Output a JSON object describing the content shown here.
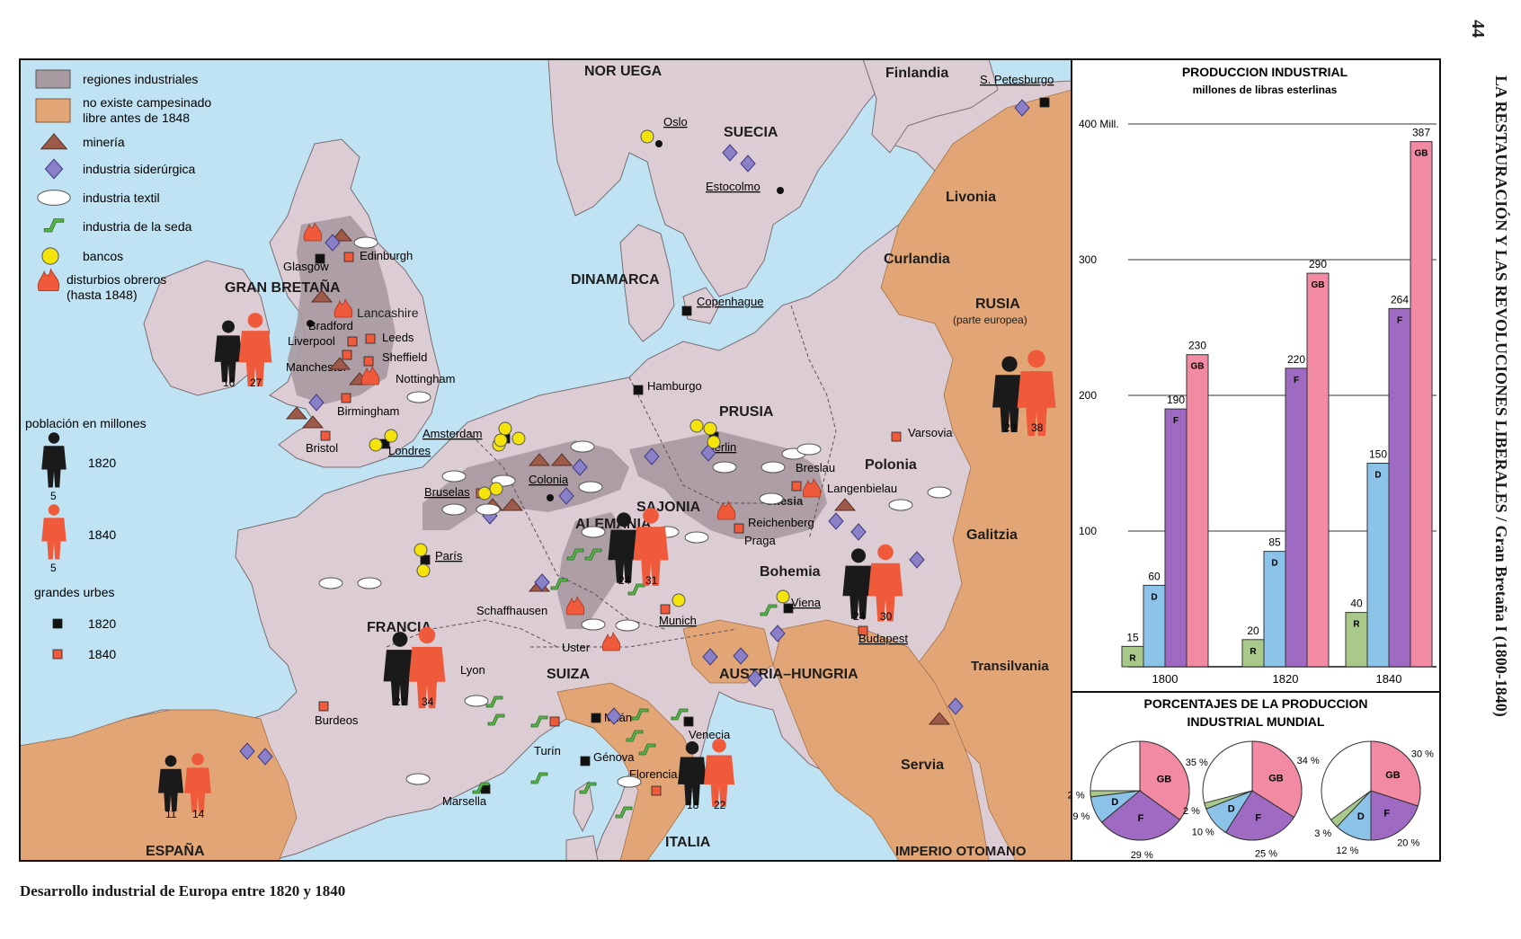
{
  "page_number": "44",
  "running_header": "LA RESTAURACIÓN Y LAS REVOLUCIONES LIBERALES / Gran Bretaña I (1800-1840)",
  "caption": "Desarrollo industrial de Europa entre 1820 y 1840",
  "legend": {
    "items": [
      {
        "symbol": "industrial-region-swatch",
        "label": "regiones industriales"
      },
      {
        "symbol": "no-free-peasantry-swatch",
        "label_lines": [
          "no existe campesinado",
          "libre antes de 1848"
        ]
      },
      {
        "symbol": "mining-icon",
        "label": "minería"
      },
      {
        "symbol": "iron-industry-icon",
        "label": "industria siderúrgica"
      },
      {
        "symbol": "textile-icon",
        "label": "industria textil"
      },
      {
        "symbol": "silk-icon",
        "label": "industria de la seda"
      },
      {
        "symbol": "bank-icon",
        "label": "bancos"
      },
      {
        "symbol": "riot-icon",
        "label_lines": [
          "disturbios obreros",
          "(hasta 1848)"
        ]
      }
    ],
    "population": {
      "title": "población en millones",
      "year_1820": "1820",
      "value_1820": "5",
      "year_1840": "1840",
      "value_1840": "5"
    },
    "cities": {
      "title": "grandes urbes",
      "year_1820": "1820",
      "year_1840": "1840"
    }
  },
  "colors": {
    "sea": "#bfe3f3",
    "land": "#dccdd4",
    "industrial": "#a89aa1",
    "no_free_peasantry": "#e2a676",
    "population_1820": "#1a1a1a",
    "population_1840": "#ef5a3b",
    "city_1820": "#111111",
    "city_1840": "#ef5a3b",
    "mining": "#9e5a48",
    "iron": "#8a80c8",
    "bank": "#f4e40c",
    "silk": "#55b548",
    "bar_R": "#a9c98b",
    "bar_D": "#8cc3e8",
    "bar_F": "#9f6ac2",
    "bar_GB": "#f28aa3"
  },
  "map": {
    "regions": [
      "GRAN BRETAÑA",
      "NOR UEGA",
      "SUECIA",
      "Finlandia",
      "DINAMARCA",
      "RUSIA",
      "(parte europea)",
      "Livonia",
      "Curlandia",
      "PRUSIA",
      "Polonia",
      "ALEMANIA",
      "SAJONIA",
      "Silesia",
      "Bohemia",
      "Galitzia",
      "FRANCIA",
      "SUIZA",
      "AUSTRIA–HUNGRIA",
      "Transilvania",
      "Servia",
      "ITALIA",
      "ESPAÑA",
      "IMPERIO OTOMANO",
      "Lancashire"
    ],
    "cities": [
      "Glasgow",
      "Edinburgh",
      "Bradford",
      "Leeds",
      "Liverpool",
      "Manchester",
      "Sheffield",
      "Nottingham",
      "Birmingham",
      "Bristol",
      "Londres",
      "Amsterdam",
      "Bruselas",
      "Colonia",
      "Hamburgo",
      "Copenhague",
      "Oslo",
      "Estocolmo",
      "S. Petesburgo",
      "Berlin",
      "Varsovia",
      "Breslau",
      "Langenbielau",
      "Reichenberg",
      "Praga",
      "París",
      "Munich",
      "Viena",
      "Budapest",
      "Schaffhausen",
      "Uster",
      "Lyon",
      "Burdeos",
      "Turín",
      "Milán",
      "Venecia",
      "Génova",
      "Marsella",
      "Florencia"
    ],
    "population_pairs": [
      {
        "region": "GRAN BRETAÑA",
        "v1820": "16",
        "v1840": "27"
      },
      {
        "region": "RUSIA",
        "v1820": "29",
        "v1840": "38"
      },
      {
        "region": "ALEMANIA",
        "v1820": "24",
        "v1840": "31"
      },
      {
        "region": "AUSTRIA–HUNGRIA",
        "v1820": "24",
        "v1840": "30"
      },
      {
        "region": "FRANCIA",
        "v1820": "27",
        "v1840": "34"
      },
      {
        "region": "ESPAÑA",
        "v1820": "11",
        "v1840": "14"
      },
      {
        "region": "ITALIA",
        "v1820": "18",
        "v1840": "22"
      }
    ]
  },
  "chart_data": [
    {
      "type": "bar",
      "title": "PRODUCCION INDUSTRIAL",
      "subtitle": "millones de libras esterlinas",
      "categories": [
        "1800",
        "1820",
        "1840"
      ],
      "series": [
        {
          "name": "R",
          "values": [
            15,
            20,
            40
          ]
        },
        {
          "name": "D",
          "values": [
            60,
            85,
            150
          ]
        },
        {
          "name": "F",
          "values": [
            190,
            220,
            264
          ]
        },
        {
          "name": "GB",
          "values": [
            230,
            290,
            387
          ]
        }
      ],
      "ylim": [
        0,
        400
      ],
      "yticks": [
        100,
        200,
        300,
        400
      ],
      "ytick_labels": [
        "100",
        "200",
        "300",
        "400 Mill."
      ],
      "grid": true
    },
    {
      "type": "pie",
      "title": "PORCENTAJES DE LA PRODUCCION INDUSTRIAL MUNDIAL",
      "pies": [
        {
          "slices": [
            {
              "label": "GB",
              "pct": 35,
              "pct_label": "35 %"
            },
            {
              "label": "F",
              "pct": 29,
              "pct_label": "29 %"
            },
            {
              "label": "D",
              "pct": 9,
              "pct_label": "9 %"
            },
            {
              "label": "R",
              "pct": 2,
              "pct_label": "2 %"
            }
          ]
        },
        {
          "slices": [
            {
              "label": "GB",
              "pct": 34,
              "pct_label": "34 %"
            },
            {
              "label": "F",
              "pct": 25,
              "pct_label": "25 %"
            },
            {
              "label": "D",
              "pct": 10,
              "pct_label": "10 %"
            },
            {
              "label": "R",
              "pct": 2,
              "pct_label": "2 %"
            }
          ]
        },
        {
          "slices": [
            {
              "label": "GB",
              "pct": 30,
              "pct_label": "30 %"
            },
            {
              "label": "F",
              "pct": 20,
              "pct_label": "20 %"
            },
            {
              "label": "D",
              "pct": 12,
              "pct_label": "12 %"
            },
            {
              "label": "R",
              "pct": 3,
              "pct_label": "3 %"
            }
          ]
        }
      ]
    }
  ]
}
